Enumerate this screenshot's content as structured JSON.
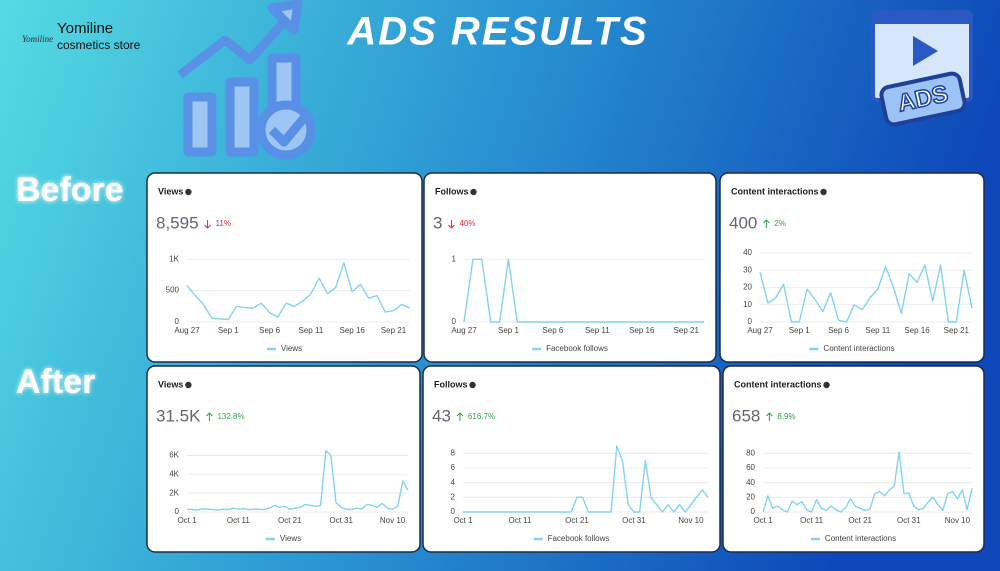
{
  "header": {
    "logo_text": "Yomiline",
    "brand": "Yomiline",
    "tagline": "cosmetics store",
    "title": "ADS RESULTS",
    "icon_label": "ADS",
    "sections": [
      "Before",
      "After"
    ]
  },
  "chart_data": [
    {
      "type": "line",
      "title": "Views",
      "total": "8,595",
      "change": "11%",
      "trend": "down",
      "categories": [
        "Aug 27",
        null,
        null,
        null,
        null,
        "Sep 1",
        null,
        null,
        null,
        null,
        "Sep 6",
        null,
        null,
        null,
        null,
        "Sep 11",
        null,
        null,
        null,
        null,
        "Sep 16",
        null,
        null,
        null,
        null,
        "Sep 21",
        null,
        null
      ],
      "series": [
        {
          "name": "Views",
          "color": "#84d3ee",
          "values": [
            580,
            420,
            280,
            60,
            50,
            40,
            250,
            230,
            220,
            300,
            150,
            80,
            300,
            250,
            330,
            450,
            700,
            450,
            550,
            940,
            480,
            600,
            380,
            420,
            160,
            180,
            280,
            220
          ]
        }
      ],
      "ylim": [
        0,
        1100
      ],
      "yticks": [
        0,
        500,
        {
          "value": 1000,
          "label": "1K"
        }
      ],
      "grid": true
    },
    {
      "type": "line",
      "title": "Follows",
      "total": "3",
      "change": "40%",
      "trend": "down",
      "categories": [
        "Aug 27",
        null,
        null,
        null,
        null,
        "Sep 1",
        null,
        null,
        null,
        null,
        "Sep 6",
        null,
        null,
        null,
        null,
        "Sep 11",
        null,
        null,
        null,
        null,
        "Sep 16",
        null,
        null,
        null,
        null,
        "Sep 21",
        null,
        null
      ],
      "series": [
        {
          "name": "Facebook follows",
          "color": "#84d3ee",
          "values": [
            0,
            1,
            1,
            0,
            0,
            1,
            0,
            0,
            0,
            0,
            0,
            0,
            0,
            0,
            0,
            0,
            0,
            0,
            0,
            0,
            0,
            0,
            0,
            0,
            0,
            0,
            0,
            0
          ]
        }
      ],
      "ylim": [
        0,
        1.1
      ],
      "yticks": [
        0,
        1
      ],
      "grid": true
    },
    {
      "type": "line",
      "title": "Content interactions",
      "total": "400",
      "change": "2%",
      "trend": "up",
      "categories": [
        "Aug 27",
        null,
        null,
        null,
        null,
        "Sep 1",
        null,
        null,
        null,
        null,
        "Sep 6",
        null,
        null,
        null,
        null,
        "Sep 11",
        null,
        null,
        null,
        null,
        "Sep 16",
        null,
        null,
        null,
        null,
        "Sep 21",
        null,
        null
      ],
      "series": [
        {
          "name": "Content interactions",
          "color": "#84d3ee",
          "values": [
            29,
            11,
            14,
            22,
            0,
            0,
            19,
            13,
            6,
            17,
            1,
            0,
            10,
            7,
            14,
            19,
            32,
            20,
            5,
            28,
            23,
            33,
            12,
            33,
            0,
            0,
            30,
            8
          ]
        }
      ],
      "ylim": [
        0,
        40
      ],
      "yticks": [
        0,
        10,
        20,
        30,
        40
      ],
      "grid": true
    },
    {
      "type": "line",
      "title": "Views",
      "total": "31.5K",
      "change": "132.8%",
      "trend": "up",
      "categories": [
        "Oct 1",
        null,
        null,
        null,
        null,
        null,
        null,
        null,
        null,
        null,
        "Oct 11",
        null,
        null,
        null,
        null,
        null,
        null,
        null,
        null,
        null,
        "Oct 21",
        null,
        null,
        null,
        null,
        null,
        null,
        null,
        null,
        null,
        "Oct 31",
        null,
        null,
        null,
        null,
        null,
        null,
        null,
        null,
        null,
        "Nov 10",
        null,
        null,
        null
      ],
      "series": [
        {
          "name": "Views",
          "color": "#84d3ee",
          "values": [
            300,
            250,
            200,
            350,
            300,
            250,
            200,
            300,
            250,
            400,
            300,
            350,
            250,
            300,
            300,
            250,
            400,
            700,
            500,
            600,
            300,
            400,
            500,
            800,
            700,
            600,
            700,
            6500,
            6000,
            1000,
            500,
            300,
            250,
            400,
            300,
            800,
            700,
            500,
            900,
            400,
            300,
            600,
            3300,
            2300
          ]
        }
      ],
      "ylim": [
        0,
        7000
      ],
      "yticks": [
        0,
        {
          "value": 2000,
          "label": "2K"
        },
        {
          "value": 4000,
          "label": "4K"
        },
        {
          "value": 6000,
          "label": "6K"
        }
      ],
      "grid": true
    },
    {
      "type": "line",
      "title": "Follows",
      "total": "43",
      "change": "616.7%",
      "trend": "up",
      "categories": [
        "Oct 1",
        null,
        null,
        null,
        null,
        null,
        null,
        null,
        null,
        null,
        "Oct 11",
        null,
        null,
        null,
        null,
        null,
        null,
        null,
        null,
        null,
        "Oct 21",
        null,
        null,
        null,
        null,
        null,
        null,
        null,
        null,
        null,
        "Oct 31",
        null,
        null,
        null,
        null,
        null,
        null,
        null,
        null,
        null,
        "Nov 10",
        null,
        null,
        null
      ],
      "series": [
        {
          "name": "Facebook follows",
          "color": "#84d3ee",
          "values": [
            0,
            0,
            0,
            0,
            0,
            0,
            0,
            0,
            0,
            0,
            0,
            0,
            0,
            0,
            0,
            0,
            0,
            0,
            0,
            0,
            2,
            2,
            0,
            0,
            0,
            0,
            0,
            9,
            7,
            1,
            0,
            0,
            7,
            2,
            1,
            0,
            1,
            0,
            1,
            0,
            1,
            2,
            3,
            2
          ]
        }
      ],
      "ylim": [
        0,
        9
      ],
      "yticks": [
        0,
        2,
        4,
        6,
        8
      ],
      "grid": true
    },
    {
      "type": "line",
      "title": "Content interactions",
      "total": "658",
      "change": "8.9%",
      "trend": "up",
      "categories": [
        "Oct 1",
        null,
        null,
        null,
        null,
        null,
        null,
        null,
        null,
        null,
        "Oct 11",
        null,
        null,
        null,
        null,
        null,
        null,
        null,
        null,
        null,
        "Oct 21",
        null,
        null,
        null,
        null,
        null,
        null,
        null,
        null,
        null,
        "Oct 31",
        null,
        null,
        null,
        null,
        null,
        null,
        null,
        null,
        null,
        "Nov 10",
        null,
        null,
        null
      ],
      "series": [
        {
          "name": "Content interactions",
          "color": "#84d3ee",
          "values": [
            0,
            22,
            5,
            8,
            3,
            0,
            15,
            10,
            14,
            3,
            0,
            17,
            5,
            2,
            8,
            3,
            0,
            6,
            18,
            8,
            5,
            2,
            4,
            25,
            28,
            22,
            30,
            35,
            82,
            25,
            26,
            8,
            3,
            5,
            14,
            20,
            10,
            2,
            25,
            28,
            18,
            30,
            3,
            32
          ]
        }
      ],
      "ylim": [
        0,
        90
      ],
      "yticks": [
        0,
        20,
        40,
        60,
        80
      ],
      "grid": true
    }
  ]
}
